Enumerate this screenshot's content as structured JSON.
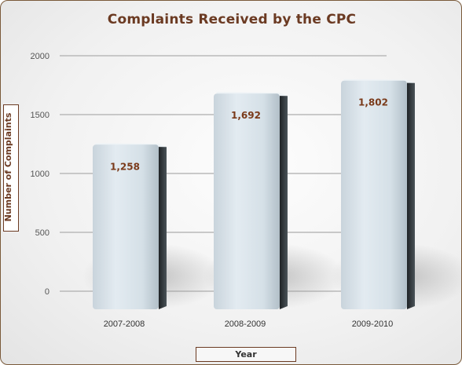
{
  "chart_data": {
    "type": "bar",
    "title": "Complaints Received by the CPC",
    "xlabel": "Year",
    "ylabel": "Number of Complaints",
    "categories": [
      "2007-2008",
      "2008-2009",
      "2009-2010"
    ],
    "values": [
      1258,
      1692,
      1802
    ],
    "data_labels": [
      "1,258",
      "1,692",
      "1,802"
    ],
    "yticks": [
      0,
      500,
      1000,
      1500,
      2000
    ],
    "ytick_labels": [
      "0",
      "500",
      "1000",
      "1500",
      "2000"
    ],
    "ylim": [
      0,
      2000
    ],
    "grid": true,
    "legend": "none",
    "colors": {
      "title": "#6b3a22",
      "bar_light": "#dfe8ee",
      "bar_side": "#2e3336",
      "grid": "#b9b9b9",
      "frame": "#7a5a3a"
    }
  }
}
